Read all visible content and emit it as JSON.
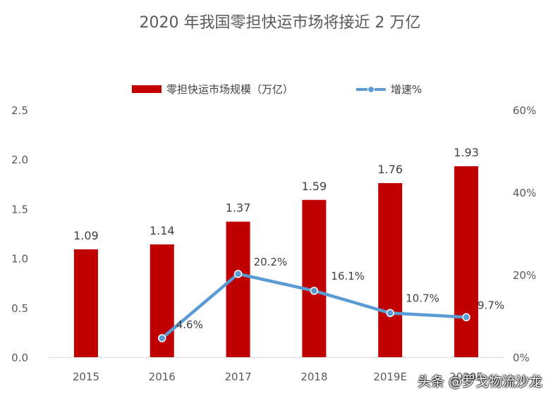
{
  "chart_data": {
    "type": "bar",
    "title": "2020 年我国零担快运市场将接近 2 万亿",
    "categories": [
      "2015",
      "2016",
      "2017",
      "2018",
      "2019E",
      "2020E"
    ],
    "series": [
      {
        "name": "零担快运市场规模（万亿）",
        "type": "bar",
        "axis": "left",
        "color": "#C00000",
        "values": [
          1.09,
          1.14,
          1.37,
          1.59,
          1.76,
          1.93
        ],
        "labels": [
          "1.09",
          "1.14",
          "1.37",
          "1.59",
          "1.76",
          "1.93"
        ]
      },
      {
        "name": "增速%",
        "type": "line",
        "axis": "right",
        "color": "#5B9BD5",
        "values": [
          null,
          4.6,
          20.2,
          16.1,
          10.7,
          9.7
        ],
        "labels": [
          "",
          "4.6%",
          "20.2%",
          "16.1%",
          "10.7%",
          "9.7%"
        ]
      }
    ],
    "y_left": {
      "min": 0,
      "max": 2.5,
      "ticks": [
        "0.0",
        "0.5",
        "1.0",
        "1.5",
        "2.0",
        "2.5"
      ]
    },
    "y_right": {
      "min": 0,
      "max": 60,
      "ticks": [
        "0%",
        "20%",
        "40%",
        "60%"
      ]
    },
    "legend_position": "top",
    "grid": false
  },
  "watermark": "头条 @罗戈物流沙龙"
}
